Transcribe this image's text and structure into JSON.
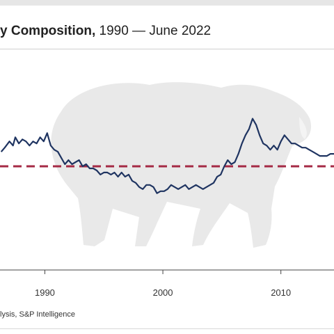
{
  "header": {
    "title_bold": "y Composition,",
    "title_rest": " 1990 — June 2022"
  },
  "footer": {
    "source": "lysis, S&P Intelligence"
  },
  "colors": {
    "series_line": "#1f3461",
    "reference_line": "#a52a45",
    "bison_silhouette": "#e9e9e9",
    "axis_line": "#444444"
  },
  "icons": {
    "background_graphic": "bison-silhouette-icon"
  },
  "chart_data": {
    "type": "line",
    "title": "y Composition, 1990 — June 2022",
    "xlabel": "",
    "ylabel": "",
    "x_ticks": [
      1990,
      2000,
      2010
    ],
    "xlim": [
      1986.2,
      2014.5
    ],
    "ylim": [
      0,
      100
    ],
    "grid": false,
    "legend": "none",
    "reference_line": {
      "style": "dashed",
      "value": 50
    },
    "series": [
      {
        "x": [
          1986.3,
          1986.6,
          1987.0,
          1987.3,
          1987.5,
          1987.8,
          1988.1,
          1988.4,
          1988.7,
          1989.0,
          1989.3,
          1989.6,
          1989.9,
          1990.2,
          1990.5,
          1990.8,
          1991.1,
          1991.4,
          1991.7,
          1992.0,
          1992.3,
          1992.6,
          1992.9,
          1993.2,
          1993.5,
          1993.8,
          1994.1,
          1994.4,
          1994.7,
          1995.0,
          1995.3,
          1995.6,
          1995.9,
          1996.2,
          1996.5,
          1996.8,
          1997.1,
          1997.4,
          1997.7,
          1998.0,
          1998.3,
          1998.6,
          1998.9,
          1999.2,
          1999.5,
          1999.8,
          2000.1,
          2000.4,
          2000.7,
          2001.0,
          2001.3,
          2001.6,
          2001.9,
          2002.2,
          2002.5,
          2002.8,
          2003.1,
          2003.4,
          2003.7,
          2004.0,
          2004.3,
          2004.6,
          2004.9,
          2005.2,
          2005.5,
          2005.8,
          2006.1,
          2006.4,
          2006.7,
          2007.0,
          2007.3,
          2007.6,
          2007.9,
          2008.2,
          2008.5,
          2008.8,
          2009.1,
          2009.4,
          2009.7,
          2010.0,
          2010.3,
          2010.6,
          2010.9,
          2011.2,
          2011.5,
          2011.8,
          2012.1,
          2012.4,
          2012.7,
          2013.0,
          2013.3,
          2013.6,
          2013.9,
          2014.2,
          2014.5
        ],
        "values": [
          57,
          59,
          62,
          60,
          64,
          61,
          63,
          62,
          60,
          62,
          61,
          64,
          62,
          66,
          60,
          58,
          57,
          54,
          51,
          53,
          51,
          52,
          53,
          50,
          51,
          49,
          49,
          48,
          46,
          47,
          47,
          46,
          47,
          45,
          47,
          45,
          46,
          43,
          42,
          40,
          39,
          41,
          41,
          40,
          37,
          38,
          38,
          39,
          41,
          40,
          39,
          40,
          41,
          39,
          40,
          41,
          40,
          39,
          40,
          41,
          42,
          45,
          46,
          50,
          53,
          51,
          52,
          56,
          61,
          65,
          68,
          73,
          70,
          65,
          61,
          60,
          58,
          60,
          58,
          62,
          65,
          63,
          61,
          61,
          60,
          59,
          59,
          58,
          57,
          56,
          55,
          55,
          55,
          56,
          56
        ]
      }
    ]
  }
}
